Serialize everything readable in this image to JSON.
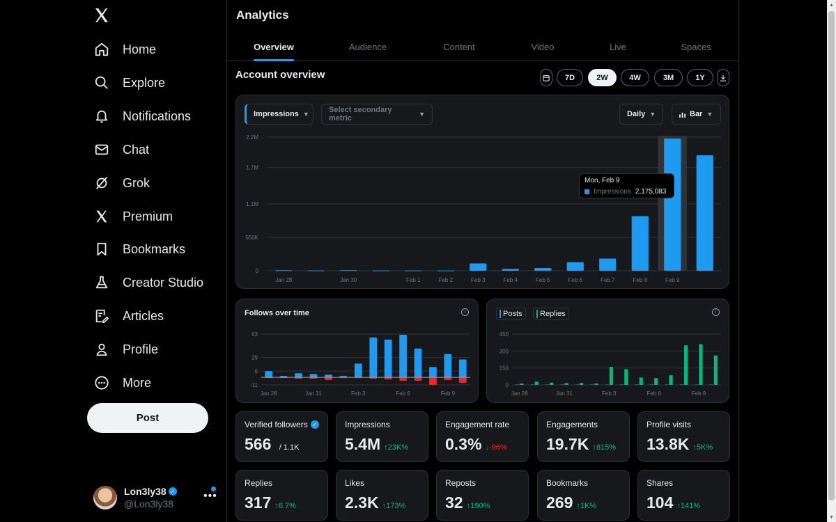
{
  "sidebar": {
    "nav": [
      {
        "label": "Home",
        "icon": "home-icon"
      },
      {
        "label": "Explore",
        "icon": "search-icon"
      },
      {
        "label": "Notifications",
        "icon": "bell-icon"
      },
      {
        "label": "Chat",
        "icon": "mail-icon"
      },
      {
        "label": "Grok",
        "icon": "grok-icon"
      },
      {
        "label": "Premium",
        "icon": "x-logo-icon"
      },
      {
        "label": "Bookmarks",
        "icon": "bookmark-icon"
      },
      {
        "label": "Creator Studio",
        "icon": "flask-icon"
      },
      {
        "label": "Articles",
        "icon": "article-icon"
      },
      {
        "label": "Profile",
        "icon": "person-icon"
      },
      {
        "label": "More",
        "icon": "more-circle-icon"
      }
    ],
    "post_label": "Post",
    "user": {
      "name": "Lon3ly38",
      "handle": "@Lon3ly38"
    }
  },
  "main": {
    "title": "Analytics",
    "tabs": [
      "Overview",
      "Audience",
      "Content",
      "Video",
      "Live",
      "Spaces"
    ],
    "active_tab": "Overview",
    "section_title": "Account overview",
    "ranges": [
      "7D",
      "2W",
      "4W",
      "3M",
      "1Y"
    ],
    "active_range": "2W",
    "primary_metric": "Impressions",
    "secondary_placeholder": "Select secondary metric",
    "granularity": "Daily",
    "chart_type_label": "Bar",
    "tooltip": {
      "date": "Mon, Feb 9",
      "label": "Impressions",
      "value": "2,175,083"
    },
    "follows_title": "Follows over time",
    "posts_legend": "Posts",
    "replies_legend": "Replies"
  },
  "stats": [
    {
      "label": "Verified followers",
      "value": "566",
      "sub": "/ 1.1K",
      "verified": true
    },
    {
      "label": "Impressions",
      "value": "5.4M",
      "change": "↑23K%",
      "dir": "up"
    },
    {
      "label": "Engagement rate",
      "value": "0.3%",
      "change": "↓-96%",
      "dir": "down"
    },
    {
      "label": "Engagements",
      "value": "19.7K",
      "change": "↑815%",
      "dir": "up"
    },
    {
      "label": "Profile visits",
      "value": "13.8K",
      "change": "↑5K%",
      "dir": "up"
    },
    {
      "label": "Replies",
      "value": "317",
      "change": "↑6.7%",
      "dir": "up"
    },
    {
      "label": "Likes",
      "value": "2.3K",
      "change": "↑173%",
      "dir": "up"
    },
    {
      "label": "Reposts",
      "value": "32",
      "change": "↑190%",
      "dir": "up"
    },
    {
      "label": "Bookmarks",
      "value": "269",
      "change": "↑1K%",
      "dir": "up"
    },
    {
      "label": "Shares",
      "value": "104",
      "change": "↑141%",
      "dir": "up"
    }
  ],
  "colors": {
    "accent": "#1d9bf0",
    "positive": "#00ba7c",
    "negative": "#f4212e",
    "replies": "#00ba7c"
  },
  "chart_data": [
    {
      "type": "bar",
      "title": "",
      "series": [
        {
          "name": "Impressions",
          "values": [
            8000,
            5000,
            8000,
            4000,
            4000,
            4000,
            120000,
            30000,
            45000,
            140000,
            200000,
            900000,
            2175083,
            1900000
          ]
        }
      ],
      "categories": [
        "Jan 28",
        "Jan 29",
        "Jan 30",
        "Jan 31",
        "Feb 1",
        "Feb 2",
        "Feb 3",
        "Feb 4",
        "Feb 5",
        "Feb 6",
        "Feb 7",
        "Feb 8",
        "Feb 9",
        "Feb 10"
      ],
      "x_tick_labels": [
        "Jan 28",
        "Jan 30",
        "Feb 1",
        "Feb 2",
        "Feb 3",
        "Feb 4",
        "Feb 5",
        "Feb 6",
        "Feb 7",
        "Feb 8",
        "Feb 9"
      ],
      "y_ticks": [
        "0",
        "550K",
        "1.1M",
        "1.7M",
        "2.2M"
      ],
      "ylim": [
        0,
        2200000
      ],
      "highlighted": "Feb 9",
      "grid": true
    },
    {
      "type": "bar",
      "title": "Follows over time",
      "categories": [
        "Jan 28",
        "Jan 29",
        "Jan 30",
        "Jan 31",
        "Feb 1",
        "Feb 2",
        "Feb 3",
        "Feb 4",
        "Feb 5",
        "Feb 6",
        "Feb 7",
        "Feb 8",
        "Feb 9",
        "Feb 10"
      ],
      "series": [
        {
          "name": "Follows",
          "values": [
            9,
            2,
            6,
            5,
            4,
            2,
            20,
            58,
            55,
            62,
            42,
            15,
            34,
            26
          ]
        },
        {
          "name": "Unfollows",
          "values": [
            -1,
            -1,
            -2,
            -2,
            -4,
            -1,
            -1,
            -2,
            -3,
            -5,
            -5,
            -11,
            -4,
            -8
          ]
        }
      ],
      "x_tick_labels": [
        "Jan 28",
        "Jan 31",
        "Feb 3",
        "Feb 6",
        "Feb 9"
      ],
      "y_ticks": [
        "-11",
        "9",
        "29",
        "63"
      ],
      "ylim": [
        -11,
        63
      ]
    },
    {
      "type": "bar",
      "title": "",
      "categories": [
        "Jan 28",
        "Jan 29",
        "Jan 30",
        "Jan 31",
        "Feb 1",
        "Feb 2",
        "Feb 3",
        "Feb 4",
        "Feb 5",
        "Feb 6",
        "Feb 7",
        "Feb 8",
        "Feb 9",
        "Feb 10"
      ],
      "series": [
        {
          "name": "Posts",
          "values": [
            3,
            3,
            3,
            3,
            3,
            3,
            3,
            3,
            3,
            3,
            3,
            3,
            3,
            3
          ]
        },
        {
          "name": "Replies",
          "values": [
            12,
            28,
            20,
            16,
            18,
            12,
            160,
            140,
            65,
            60,
            85,
            350,
            360,
            260
          ]
        }
      ],
      "x_tick_labels": [
        "Jan 28",
        "Jan 31",
        "Feb 3",
        "Feb 6",
        "Feb 9"
      ],
      "y_ticks": [
        "0",
        "150",
        "300",
        "450"
      ],
      "ylim": [
        0,
        450
      ]
    }
  ]
}
